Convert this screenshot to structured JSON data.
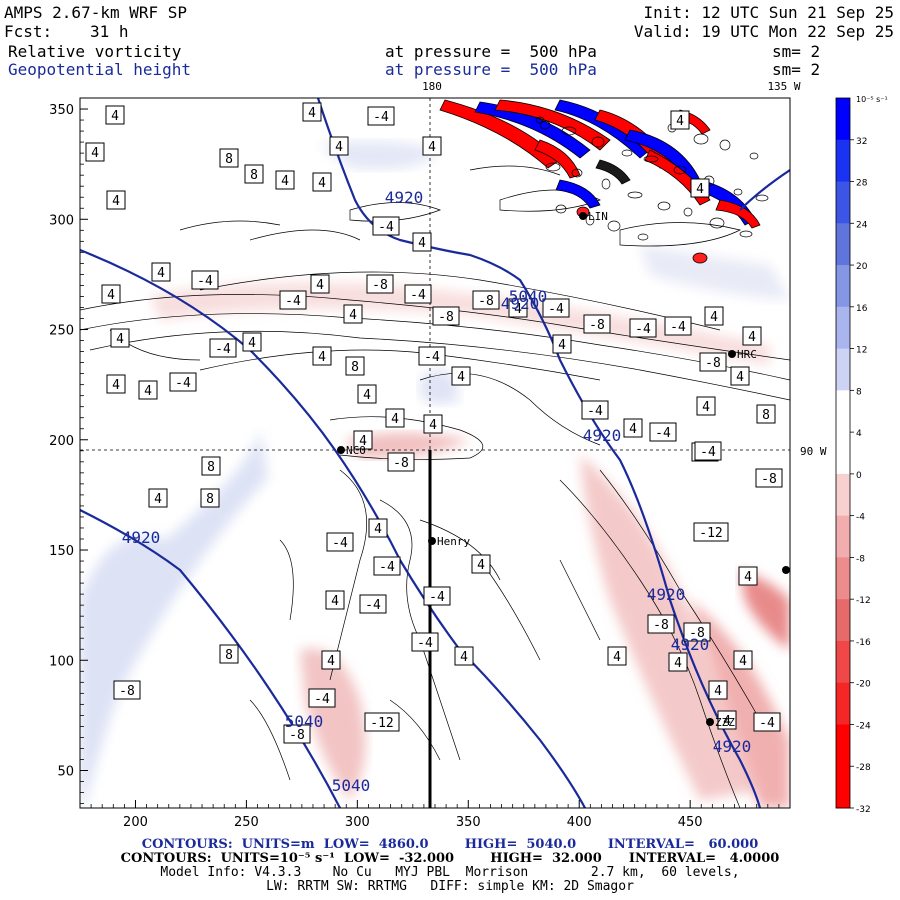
{
  "header": {
    "model_line": "AMPS 2.67-km WRF SP",
    "fcst_label": "Fcst:",
    "fcst_value": "31 h",
    "init_line": "Init: 12 UTC Sun 21 Sep 25",
    "valid_line": "Valid: 19 UTC Mon 22 Sep 25",
    "field1_name": "Relative vorticity",
    "field1_level": "at pressure =  500 hPa",
    "field1_sm": "sm= 2",
    "field2_name": "Geopotential height",
    "field2_level": "at pressure =  500 hPa",
    "field2_sm": "sm= 2"
  },
  "map_labels": {
    "lon_180": "180",
    "lon_135w": "135 W",
    "lon_90w": "90 W",
    "stations": [
      "LIN",
      "HRC",
      "NCO",
      "Henry",
      "ZZZ"
    ]
  },
  "colors": {
    "height_contour": "#1a2a9a",
    "positive_max": "#0000ff",
    "negative_max": "#ff0000"
  },
  "chart_data": {
    "type": "heatmap",
    "title": "",
    "xlabel": "",
    "ylabel": "",
    "xlim": [
      175,
      495
    ],
    "ylim": [
      33,
      355
    ],
    "x_ticks": [
      200,
      250,
      300,
      350,
      400,
      450
    ],
    "y_ticks": [
      50,
      100,
      150,
      200,
      250,
      300,
      350
    ],
    "grid": false,
    "height_contours": {
      "units": "m",
      "low": "4860.0",
      "high": "5040.0",
      "interval": "60.000",
      "labels": [
        "4920",
        "4920",
        "4920",
        "4920",
        "4920",
        "4920",
        "4920",
        "5040",
        "5040",
        "5040"
      ]
    },
    "vorticity": {
      "units": "10^-5 s^-1",
      "low": "-32.000",
      "high": "32.000",
      "interval": "4.0000",
      "colorbar_ticks": [
        "10⁻⁵ s⁻¹",
        "32",
        "28",
        "24",
        "20",
        "16",
        "12",
        "8",
        "4",
        "0",
        "-4",
        "-8",
        "-12",
        "-16",
        "-20",
        "-24",
        "-28",
        "-32"
      ],
      "contour_labels": [
        "4",
        "4",
        "4",
        "8",
        "8",
        "4",
        "4",
        "4",
        "4",
        "-4",
        "4",
        "4",
        "4",
        "4",
        "-4",
        "4",
        "-4",
        "4",
        "4",
        "-4",
        "4",
        "-8",
        "-4",
        "4",
        "-8",
        "-8",
        "4",
        "-4",
        "-8",
        "-4",
        "-4",
        "4",
        "4",
        "4",
        "-4",
        "4",
        "8",
        "-4",
        "4",
        "4",
        "4",
        "4",
        "-4",
        "4",
        "4",
        "4",
        "4",
        "-4",
        "-4",
        "-8",
        "-8",
        "4",
        "-8",
        "4",
        "8",
        "4",
        "8",
        "4",
        "8",
        "-4",
        "4",
        "-4",
        "-4",
        "4",
        "-4",
        "4",
        "-4",
        "4",
        "-8",
        "4",
        "8",
        "4",
        "-8",
        "-4",
        "4",
        "-8",
        "-8",
        "4",
        "-12",
        "4",
        "-8",
        "4",
        "4",
        "-4",
        "-12",
        "-4"
      ]
    }
  },
  "footer": {
    "line1": "CONTOURS:  UNITS=m  LOW=  4860.0        HIGH=  5040.0       INTERVAL=   60.000",
    "line2": "CONTOURS:  UNITS=10⁻⁵ s⁻¹  LOW=  -32.000        HIGH=  32.000      INTERVAL=   4.0000",
    "line3": "Model Info: V4.3.3    No Cu   MYJ PBL  Morrison        2.7 km,  60 levels,",
    "line4": "LW: RRTM SW: RRTMG   DIFF: simple KM: 2D Smagor"
  }
}
